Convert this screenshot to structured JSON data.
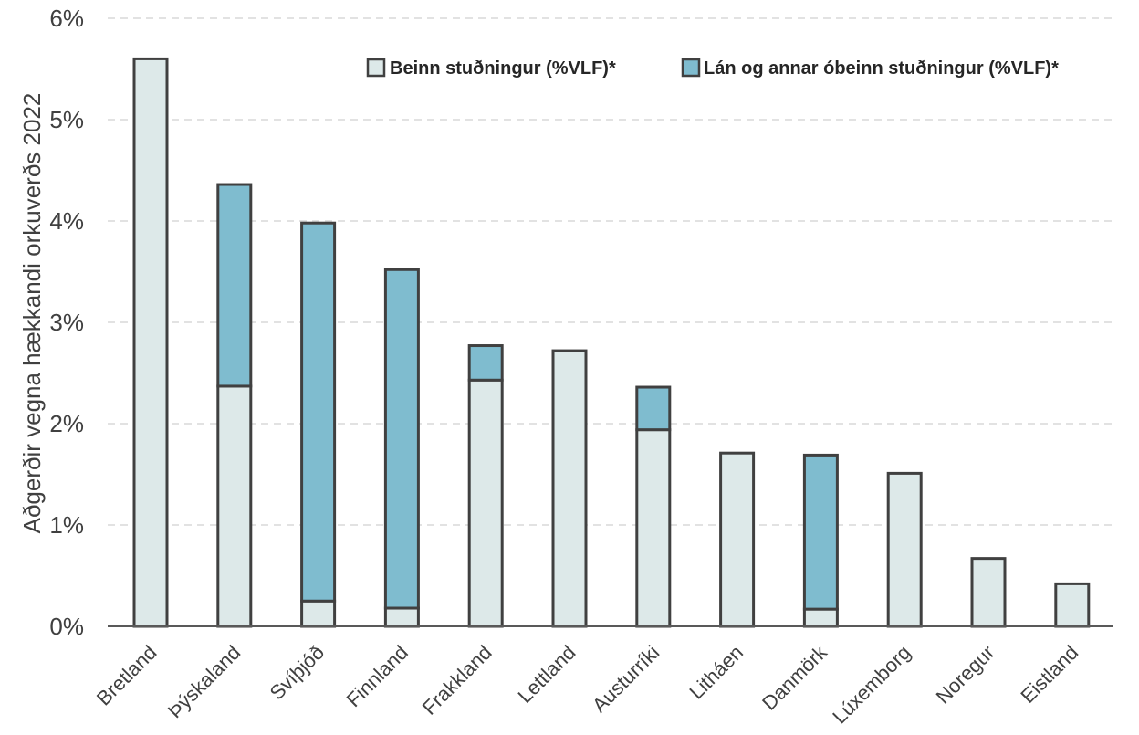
{
  "chart_data": {
    "type": "bar",
    "stacked": true,
    "title": "",
    "xlabel": "",
    "ylabel": "Aðgerðir vegna hækkandi orkuverðs 2022",
    "ylim": [
      0,
      6
    ],
    "y_ticks": [
      0,
      1,
      2,
      3,
      4,
      5,
      6
    ],
    "y_tick_format": "%",
    "grid": "horizontal-dashed",
    "legend_position": "top-right",
    "categories": [
      "Bretland",
      "Þýskaland",
      "Svíþjóð",
      "Finnland",
      "Frakkland",
      "Lettland",
      "Austurríki",
      "Litháen",
      "Danmörk",
      "Lúxemborg",
      "Noregur",
      "Eistland"
    ],
    "series": [
      {
        "name": "Beinn stuðningur (%VLF)*",
        "color": "#dde9e9",
        "values": [
          5.6,
          2.37,
          0.25,
          0.18,
          2.43,
          2.72,
          1.94,
          1.71,
          0.17,
          1.51,
          0.67,
          0.42
        ]
      },
      {
        "name": "Lán og annar óbeinn stuðningur (%VLF)*",
        "color": "#7fbccf",
        "values": [
          0.0,
          1.99,
          3.73,
          3.34,
          0.34,
          0.0,
          0.42,
          0.0,
          1.52,
          0.0,
          0.0,
          0.0
        ]
      }
    ]
  }
}
